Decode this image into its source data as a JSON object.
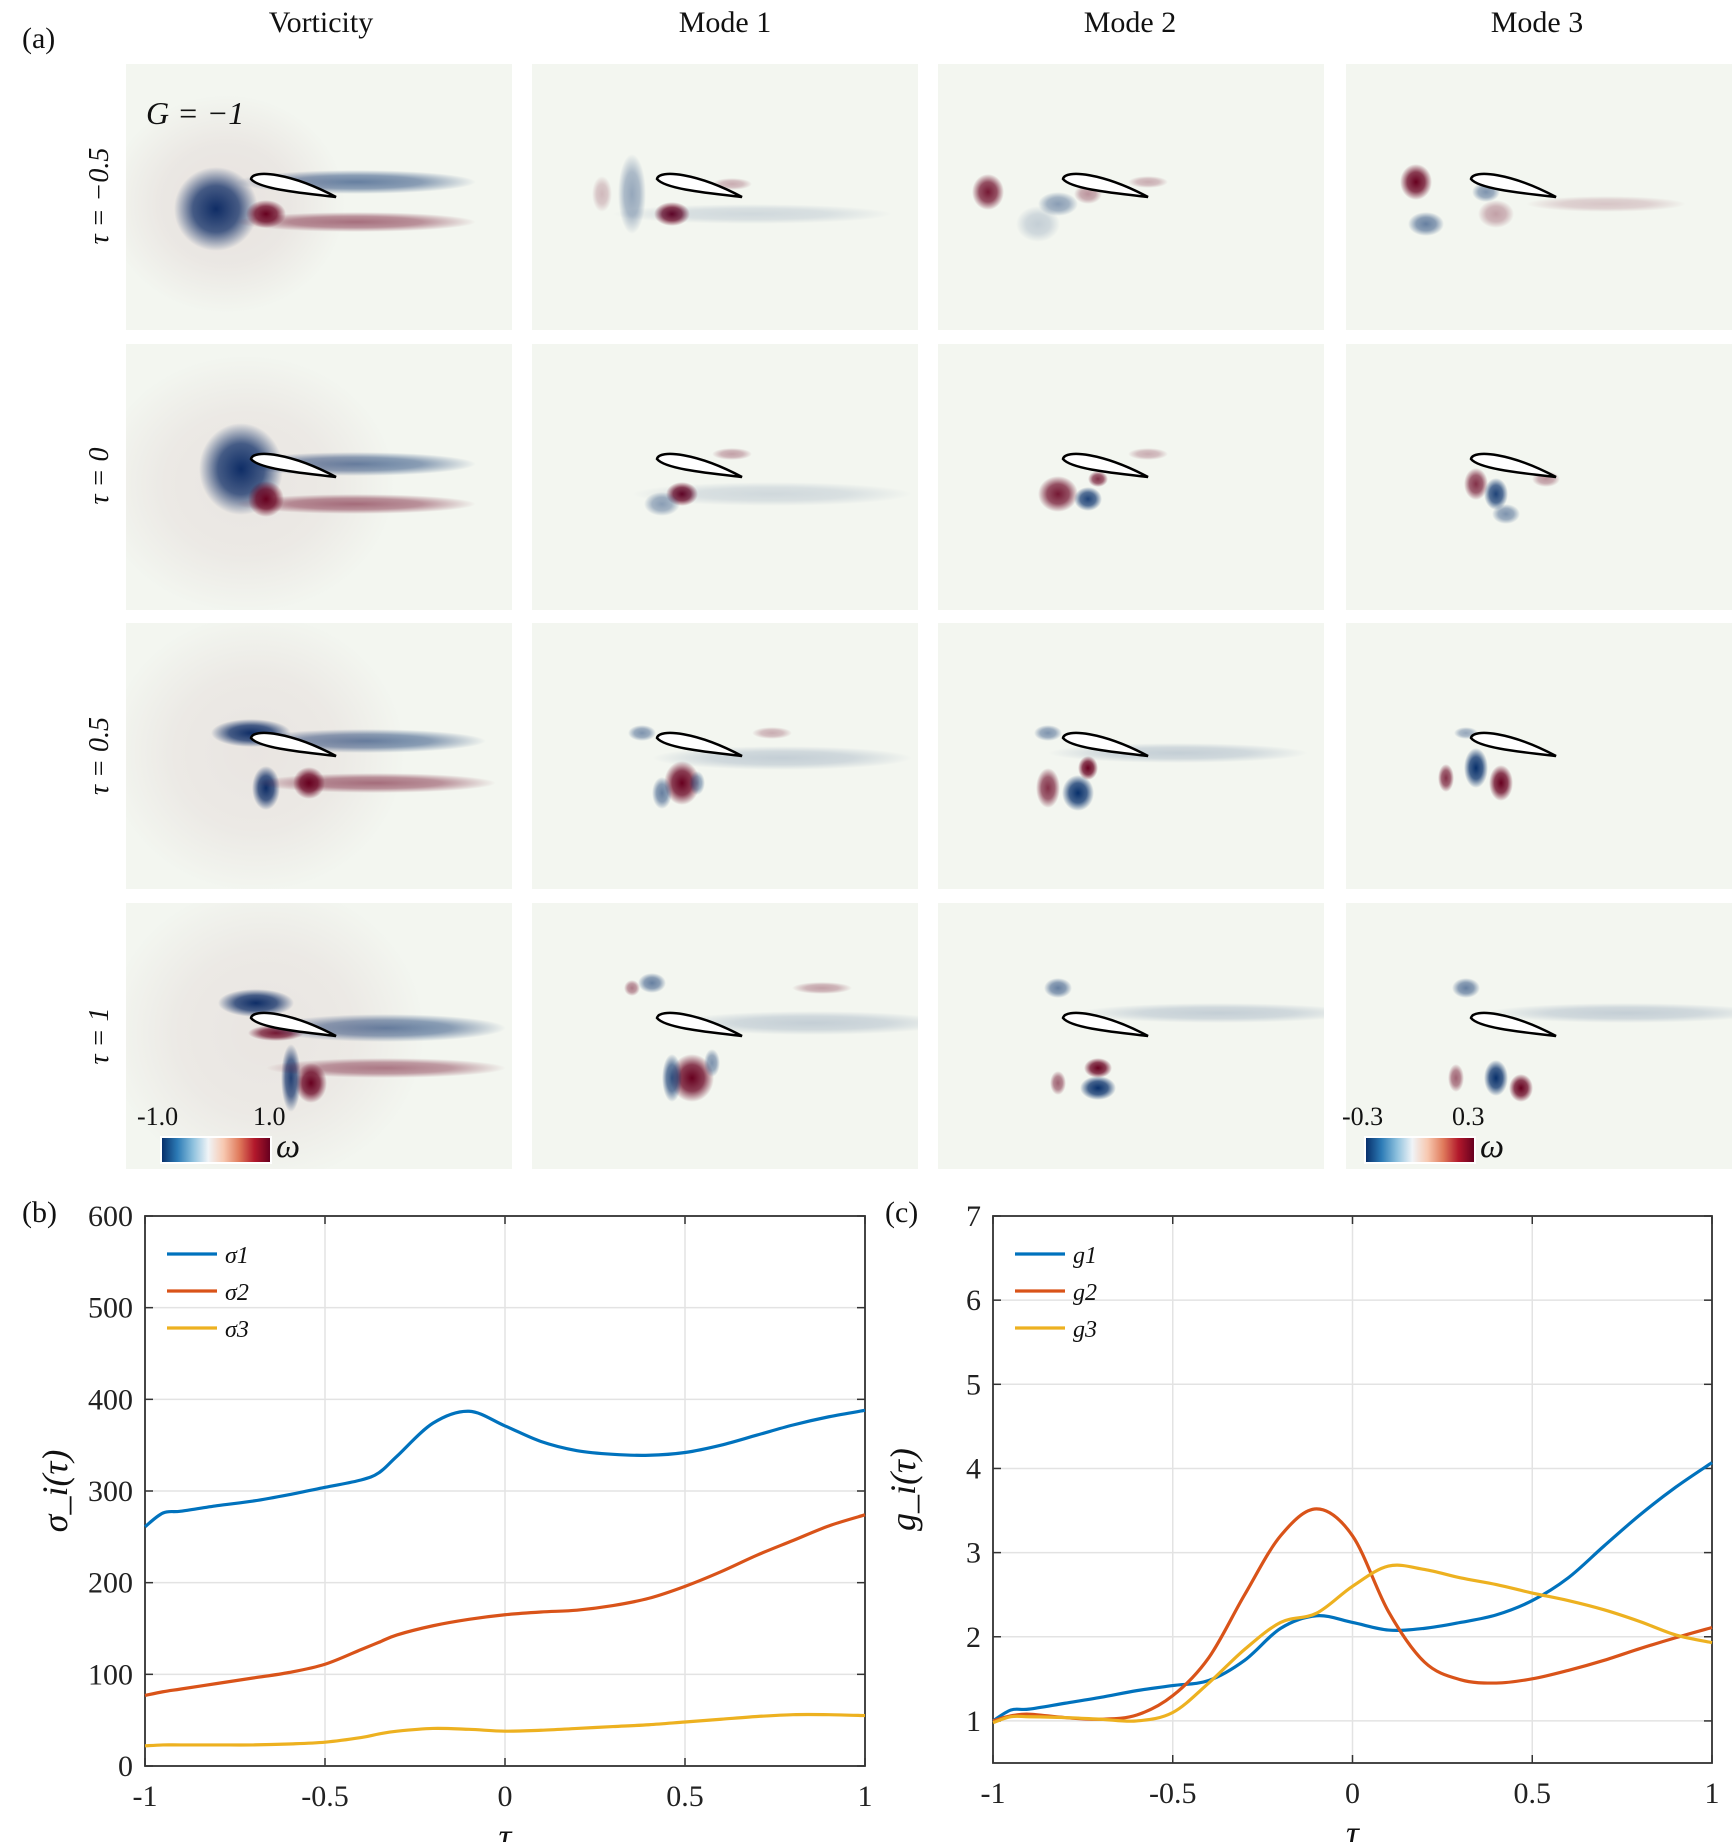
{
  "figure": {
    "panel_labels": {
      "a": "(a)",
      "b": "(b)",
      "c": "(c)"
    },
    "column_titles": [
      "Vorticity",
      "Mode 1",
      "Mode 2",
      "Mode 3"
    ],
    "row_labels": [
      "τ = −0.5",
      "τ = 0",
      "τ = 0.5",
      "τ = 1"
    ],
    "gust_label": "G = −1",
    "colorbars": [
      {
        "min_label": "-1.0",
        "max_label": "1.0",
        "symbol": "ω",
        "column": "Vorticity"
      },
      {
        "min_label": "-0.3",
        "max_label": "0.3",
        "symbol": "ω",
        "column": "Mode 3"
      }
    ],
    "colormap": {
      "negative": "#08306b",
      "neutral": "#f3f6f0",
      "positive": "#67001f"
    }
  },
  "chart_data": [
    {
      "type": "line",
      "panel": "(b)",
      "xlabel": "τ",
      "ylabel": "σ_i(τ)",
      "xlim": [
        -1,
        1
      ],
      "ylim": [
        0,
        600
      ],
      "xticks": [
        -1,
        -0.5,
        0,
        0.5,
        1
      ],
      "xtick_labels": [
        "-1",
        "-0.5",
        "0",
        "0.5",
        "1"
      ],
      "yticks": [
        0,
        100,
        200,
        300,
        400,
        500,
        600
      ],
      "ytick_labels": [
        "0",
        "100",
        "200",
        "300",
        "400",
        "500",
        "600"
      ],
      "grid": true,
      "legend_position": "top-left",
      "x": [
        -1,
        -0.95,
        -0.9,
        -0.8,
        -0.7,
        -0.6,
        -0.5,
        -0.4,
        -0.35,
        -0.3,
        -0.2,
        -0.1,
        0,
        0.1,
        0.2,
        0.3,
        0.4,
        0.5,
        0.6,
        0.7,
        0.8,
        0.9,
        1
      ],
      "series": [
        {
          "name": "σ1",
          "color": "#0072bd",
          "values": [
            261,
            276,
            278,
            284,
            289,
            296,
            304,
            312,
            320,
            338,
            374,
            387,
            371,
            354,
            344,
            340,
            339,
            342,
            350,
            361,
            372,
            381,
            388
          ]
        },
        {
          "name": "σ2",
          "color": "#d95319",
          "values": [
            77,
            81,
            84,
            90,
            96,
            102,
            111,
            127,
            135,
            143,
            153,
            160,
            165,
            168,
            170,
            175,
            183,
            196,
            212,
            230,
            246,
            262,
            274
          ]
        },
        {
          "name": "σ3",
          "color": "#edb120",
          "values": [
            22,
            23,
            23,
            23,
            23,
            24,
            26,
            31,
            35,
            38,
            41,
            40,
            38,
            39,
            41,
            43,
            45,
            48,
            51,
            54,
            56,
            56,
            55
          ]
        }
      ]
    },
    {
      "type": "line",
      "panel": "(c)",
      "xlabel": "τ",
      "ylabel": "g_i(τ)",
      "xlim": [
        -1,
        1
      ],
      "ylim": [
        0.5,
        7
      ],
      "xticks": [
        -1,
        -0.5,
        0,
        0.5,
        1
      ],
      "xtick_labels": [
        "-1",
        "-0.5",
        "0",
        "0.5",
        "1"
      ],
      "yticks": [
        1,
        2,
        3,
        4,
        5,
        6,
        7
      ],
      "ytick_labels": [
        "1",
        "2",
        "3",
        "4",
        "5",
        "6",
        "7"
      ],
      "grid": true,
      "legend_position": "top-left",
      "x": [
        -1,
        -0.95,
        -0.9,
        -0.8,
        -0.7,
        -0.6,
        -0.5,
        -0.4,
        -0.3,
        -0.2,
        -0.1,
        0,
        0.1,
        0.2,
        0.3,
        0.4,
        0.5,
        0.6,
        0.7,
        0.8,
        0.9,
        1
      ],
      "series": [
        {
          "name": "g1",
          "color": "#0072bd",
          "values": [
            1.0,
            1.13,
            1.14,
            1.21,
            1.28,
            1.36,
            1.42,
            1.48,
            1.72,
            2.1,
            2.25,
            2.17,
            2.08,
            2.1,
            2.17,
            2.26,
            2.43,
            2.7,
            3.08,
            3.45,
            3.78,
            4.07
          ]
        },
        {
          "name": "g2",
          "color": "#d95319",
          "values": [
            1.0,
            1.06,
            1.08,
            1.04,
            1.02,
            1.07,
            1.3,
            1.75,
            2.5,
            3.2,
            3.52,
            3.2,
            2.3,
            1.7,
            1.49,
            1.45,
            1.5,
            1.6,
            1.72,
            1.86,
            1.99,
            2.11
          ]
        },
        {
          "name": "g3",
          "color": "#edb120",
          "values": [
            0.98,
            1.05,
            1.05,
            1.04,
            1.02,
            1.0,
            1.1,
            1.45,
            1.85,
            2.17,
            2.28,
            2.6,
            2.84,
            2.8,
            2.7,
            2.62,
            2.52,
            2.43,
            2.32,
            2.18,
            2.02,
            1.93
          ]
        }
      ]
    }
  ]
}
